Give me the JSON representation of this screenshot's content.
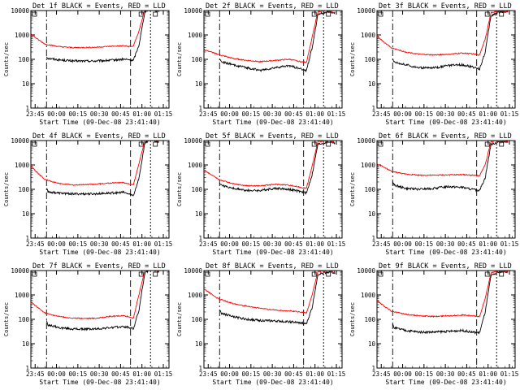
{
  "figure": {
    "start_time_label": "Start Time (09-Dec-08 23:41:40)",
    "y_axis_label": "Counts/sec",
    "legend_suffix": "BLACK = Events, RED = LLD",
    "y_ticks": [
      "1",
      "10",
      "100",
      "1000",
      "10000"
    ],
    "x_ticks": [
      "23:45",
      "00:00",
      "00:15",
      "00:30",
      "00:45",
      "01:00",
      "01:15"
    ],
    "colors": {
      "events": "#000000",
      "lld": "#ff0000"
    }
  },
  "chart_data": [
    {
      "type": "line",
      "title": "Det 1f BLACK = Events, RED = LLD",
      "x_ticks": [
        "23:45",
        "00:00",
        "00:15",
        "00:30",
        "00:45",
        "01:00",
        "01:15"
      ],
      "xlim_minutes": [
        0,
        97
      ],
      "ylim": [
        1,
        10000
      ],
      "y_scale": "log",
      "series": [
        {
          "name": "Events",
          "color": "#000000",
          "x": [
            11,
            12,
            20,
            30,
            45,
            55,
            65,
            70,
            72,
            76,
            80,
            84,
            90
          ],
          "y": [
            130,
            110,
            95,
            85,
            85,
            90,
            100,
            95,
            90,
            400,
            9000,
            12000,
            9000
          ]
        },
        {
          "name": "LLD",
          "color": "#ff0000",
          "x": [
            0,
            5,
            10,
            20,
            30,
            45,
            55,
            65,
            70,
            72,
            76,
            80,
            84,
            90
          ],
          "y": [
            1100,
            650,
            420,
            330,
            300,
            310,
            340,
            360,
            330,
            350,
            1500,
            11000,
            13000,
            9000
          ]
        }
      ]
    },
    {
      "type": "line",
      "title": "Det 2f BLACK = Events, RED = LLD",
      "x_ticks": [
        "23:45",
        "00:00",
        "00:15",
        "00:30",
        "00:45",
        "01:00",
        "01:15"
      ],
      "xlim_minutes": [
        0,
        97
      ],
      "ylim": [
        1,
        10000
      ],
      "y_scale": "log",
      "series": [
        {
          "name": "Events",
          "color": "#000000",
          "x": [
            11,
            12,
            20,
            30,
            40,
            50,
            60,
            68,
            72,
            76,
            80,
            88,
            92
          ],
          "y": [
            110,
            80,
            60,
            45,
            35,
            45,
            55,
            40,
            35,
            300,
            7000,
            9000,
            8000
          ]
        },
        {
          "name": "LLD",
          "color": "#ff0000",
          "x": [
            0,
            5,
            10,
            20,
            30,
            40,
            50,
            60,
            68,
            72,
            76,
            80,
            88,
            92
          ],
          "y": [
            250,
            200,
            160,
            110,
            90,
            80,
            90,
            100,
            80,
            75,
            800,
            9000,
            10000,
            8000
          ]
        }
      ]
    },
    {
      "type": "line",
      "title": "Det 3f BLACK = Events, RED = LLD",
      "x_ticks": [
        "23:45",
        "00:00",
        "00:15",
        "00:30",
        "00:45",
        "01:00",
        "01:15"
      ],
      "xlim_minutes": [
        0,
        97
      ],
      "ylim": [
        1,
        10000
      ],
      "y_scale": "log",
      "series": [
        {
          "name": "Events",
          "color": "#000000",
          "x": [
            11,
            12,
            20,
            30,
            40,
            50,
            60,
            66,
            72,
            76,
            80,
            86,
            92
          ],
          "y": [
            100,
            80,
            60,
            45,
            45,
            55,
            60,
            50,
            40,
            200,
            6000,
            9000,
            9000
          ]
        },
        {
          "name": "LLD",
          "color": "#ff0000",
          "x": [
            0,
            5,
            10,
            20,
            30,
            40,
            50,
            60,
            66,
            72,
            76,
            80,
            86,
            92
          ],
          "y": [
            900,
            500,
            300,
            200,
            160,
            150,
            160,
            180,
            170,
            150,
            700,
            8000,
            10000,
            9000
          ]
        }
      ]
    },
    {
      "type": "line",
      "title": "Det 4f BLACK = Events, RED = LLD",
      "x_ticks": [
        "23:45",
        "00:00",
        "00:15",
        "00:30",
        "00:45",
        "01:00",
        "01:15"
      ],
      "xlim_minutes": [
        0,
        97
      ],
      "ylim": [
        1,
        10000
      ],
      "y_scale": "log",
      "series": [
        {
          "name": "Events",
          "color": "#000000",
          "x": [
            11,
            12,
            20,
            30,
            45,
            55,
            65,
            70,
            72,
            76,
            80,
            84,
            90
          ],
          "y": [
            110,
            80,
            70,
            65,
            65,
            70,
            75,
            60,
            55,
            300,
            8000,
            11000,
            9000
          ]
        },
        {
          "name": "LLD",
          "color": "#ff0000",
          "x": [
            0,
            5,
            10,
            20,
            30,
            45,
            55,
            65,
            70,
            72,
            76,
            80,
            84,
            90
          ],
          "y": [
            900,
            450,
            250,
            170,
            150,
            160,
            180,
            190,
            160,
            150,
            1200,
            10000,
            12000,
            9000
          ]
        }
      ]
    },
    {
      "type": "line",
      "title": "Det 5f BLACK = Events, RED = LLD",
      "x_ticks": [
        "23:45",
        "00:00",
        "00:15",
        "00:30",
        "00:45",
        "01:00",
        "01:15"
      ],
      "xlim_minutes": [
        0,
        97
      ],
      "ylim": [
        1,
        10000
      ],
      "y_scale": "log",
      "series": [
        {
          "name": "Events",
          "color": "#000000",
          "x": [
            11,
            12,
            20,
            30,
            40,
            50,
            60,
            68,
            72,
            76,
            80,
            88,
            92
          ],
          "y": [
            200,
            150,
            110,
            90,
            90,
            110,
            100,
            80,
            70,
            400,
            7000,
            9000,
            8000
          ]
        },
        {
          "name": "LLD",
          "color": "#ff0000",
          "x": [
            0,
            5,
            10,
            20,
            30,
            40,
            50,
            60,
            68,
            72,
            76,
            80,
            88,
            92
          ],
          "y": [
            600,
            400,
            260,
            170,
            140,
            140,
            160,
            150,
            120,
            110,
            900,
            9000,
            10000,
            8000
          ]
        }
      ]
    },
    {
      "type": "line",
      "title": "Det 6f BLACK = Events, RED = LLD",
      "x_ticks": [
        "23:45",
        "00:00",
        "00:15",
        "00:30",
        "00:45",
        "01:00",
        "01:15"
      ],
      "xlim_minutes": [
        0,
        97
      ],
      "ylim": [
        1,
        10000
      ],
      "y_scale": "log",
      "series": [
        {
          "name": "Events",
          "color": "#000000",
          "x": [
            11,
            12,
            20,
            30,
            40,
            50,
            60,
            66,
            72,
            76,
            80,
            86,
            92
          ],
          "y": [
            200,
            150,
            110,
            100,
            110,
            130,
            120,
            100,
            90,
            300,
            7000,
            9000,
            9000
          ]
        },
        {
          "name": "LLD",
          "color": "#ff0000",
          "x": [
            0,
            5,
            10,
            20,
            30,
            40,
            50,
            60,
            66,
            72,
            76,
            80,
            86,
            92
          ],
          "y": [
            1100,
            800,
            550,
            420,
            380,
            380,
            390,
            400,
            380,
            360,
            1000,
            9000,
            10000,
            9000
          ]
        }
      ]
    },
    {
      "type": "line",
      "title": "Det 7f BLACK = Events, RED = LLD",
      "x_ticks": [
        "23:45",
        "00:00",
        "00:15",
        "00:30",
        "00:45",
        "01:00",
        "01:15"
      ],
      "xlim_minutes": [
        0,
        97
      ],
      "ylim": [
        1,
        10000
      ],
      "y_scale": "log",
      "series": [
        {
          "name": "Events",
          "color": "#000000",
          "x": [
            11,
            12,
            20,
            30,
            45,
            55,
            65,
            70,
            72,
            76,
            80,
            84,
            90
          ],
          "y": [
            90,
            60,
            45,
            40,
            40,
            45,
            50,
            45,
            40,
            250,
            8000,
            11000,
            9000
          ]
        },
        {
          "name": "LLD",
          "color": "#ff0000",
          "x": [
            0,
            5,
            10,
            20,
            30,
            45,
            55,
            65,
            70,
            72,
            76,
            80,
            84,
            90
          ],
          "y": [
            500,
            300,
            180,
            130,
            110,
            110,
            130,
            140,
            120,
            110,
            1100,
            10000,
            12000,
            9000
          ]
        }
      ]
    },
    {
      "type": "line",
      "title": "Det 8f BLACK = Events, RED = LLD",
      "x_ticks": [
        "23:45",
        "00:00",
        "00:15",
        "00:30",
        "00:45",
        "01:00",
        "01:15"
      ],
      "xlim_minutes": [
        0,
        97
      ],
      "ylim": [
        1,
        10000
      ],
      "y_scale": "log",
      "series": [
        {
          "name": "Events",
          "color": "#000000",
          "x": [
            11,
            12,
            20,
            30,
            40,
            50,
            60,
            68,
            72,
            76,
            80,
            88,
            92
          ],
          "y": [
            250,
            180,
            130,
            100,
            90,
            85,
            80,
            70,
            65,
            300,
            7000,
            9000,
            8000
          ]
        },
        {
          "name": "LLD",
          "color": "#ff0000",
          "x": [
            0,
            5,
            10,
            20,
            30,
            40,
            50,
            60,
            68,
            72,
            76,
            80,
            88,
            92
          ],
          "y": [
            1800,
            1100,
            700,
            450,
            350,
            280,
            240,
            220,
            200,
            180,
            1000,
            9000,
            10000,
            8000
          ]
        }
      ]
    },
    {
      "type": "line",
      "title": "Det 9f BLACK = Events, RED = LLD",
      "x_ticks": [
        "23:45",
        "00:00",
        "00:15",
        "00:30",
        "00:45",
        "01:00",
        "01:15"
      ],
      "xlim_minutes": [
        0,
        97
      ],
      "ylim": [
        1,
        10000
      ],
      "y_scale": "log",
      "series": [
        {
          "name": "Events",
          "color": "#000000",
          "x": [
            11,
            12,
            20,
            30,
            40,
            50,
            60,
            66,
            72,
            76,
            80,
            86,
            92
          ],
          "y": [
            60,
            45,
            35,
            30,
            30,
            32,
            35,
            30,
            28,
            200,
            6000,
            9000,
            9000
          ]
        },
        {
          "name": "LLD",
          "color": "#ff0000",
          "x": [
            0,
            5,
            10,
            20,
            30,
            40,
            50,
            60,
            66,
            72,
            76,
            80,
            86,
            92
          ],
          "y": [
            600,
            350,
            220,
            160,
            140,
            130,
            140,
            150,
            140,
            130,
            700,
            8000,
            10000,
            9000
          ]
        }
      ]
    }
  ]
}
